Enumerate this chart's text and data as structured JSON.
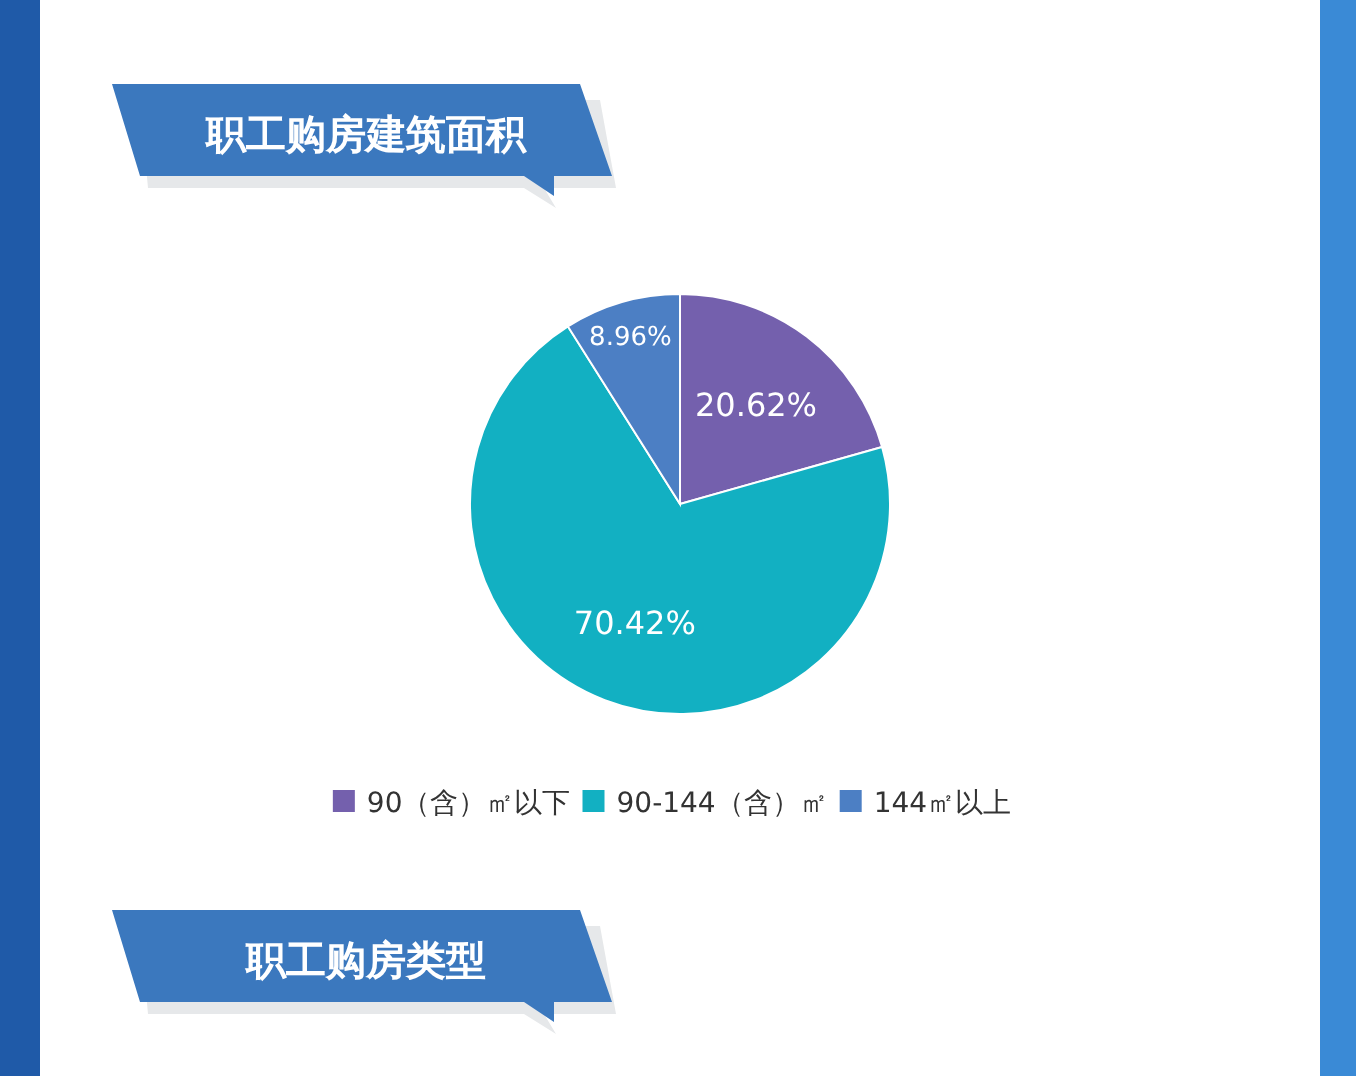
{
  "chart_data": {
    "type": "pie",
    "title": "职工购房建筑面积",
    "categories": [
      "90（含）㎡以下",
      "90-144（含）㎡",
      "144㎡以上"
    ],
    "values": [
      20.62,
      70.42,
      8.96
    ],
    "colors": [
      "#7460ad",
      "#12b0c2",
      "#4c7fc4"
    ],
    "value_labels": [
      "20.62%",
      "70.42%",
      "8.96%"
    ],
    "legend": "bottom",
    "annotations": [
      "职工购房类型"
    ]
  }
}
